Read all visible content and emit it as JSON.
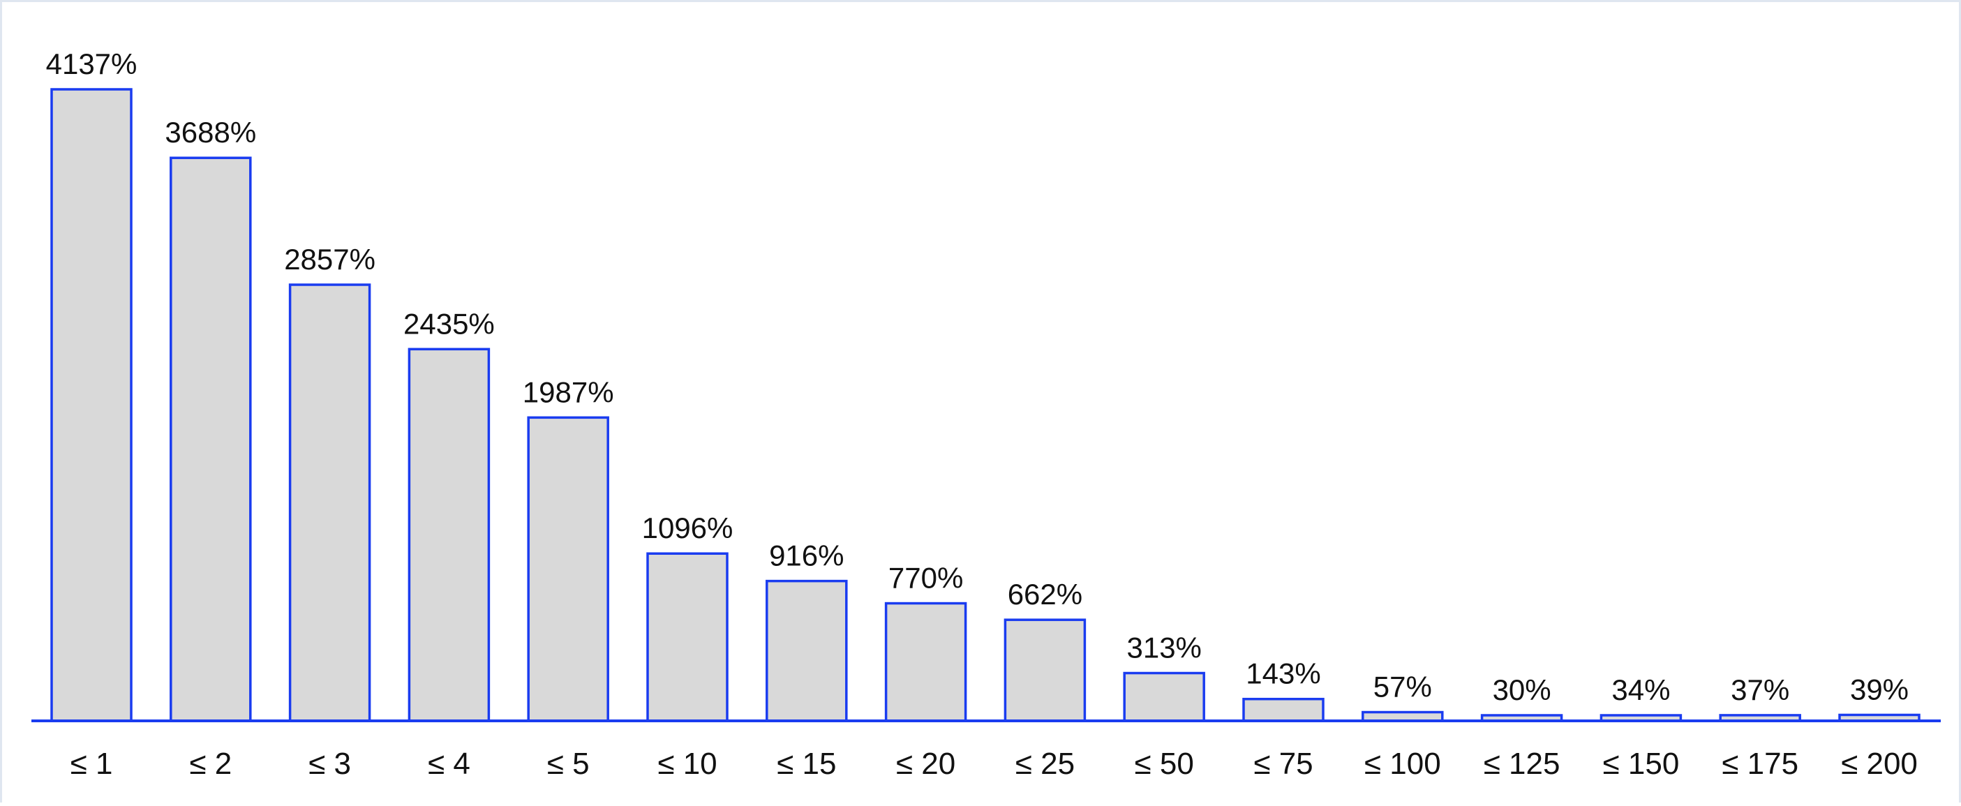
{
  "chart_data": {
    "type": "bar",
    "categories": [
      "≤ 1",
      "≤ 2",
      "≤ 3",
      "≤ 4",
      "≤ 5",
      "≤ 10",
      "≤ 15",
      "≤ 20",
      "≤ 25",
      "≤ 50",
      "≤ 75",
      "≤ 100",
      "≤ 125",
      "≤ 150",
      "≤ 175",
      "≤ 200"
    ],
    "values": [
      4137,
      3688,
      2857,
      2435,
      1987,
      1096,
      916,
      770,
      662,
      313,
      143,
      57,
      30,
      34,
      37,
      39
    ],
    "value_labels": [
      "4137%",
      "3688%",
      "2857%",
      "2435%",
      "1987%",
      "1096%",
      "916%",
      "770%",
      "662%",
      "313%",
      "143%",
      "57%",
      "30%",
      "34%",
      "37%",
      "39%"
    ],
    "title": "",
    "xlabel": "",
    "ylabel": "",
    "ylim": [
      0,
      4137
    ],
    "grid": false,
    "legend": "none",
    "colors": {
      "bar_fill": "#d9d9d9",
      "bar_stroke": "#1a3cf0",
      "axis": "#1a3cf0"
    }
  }
}
